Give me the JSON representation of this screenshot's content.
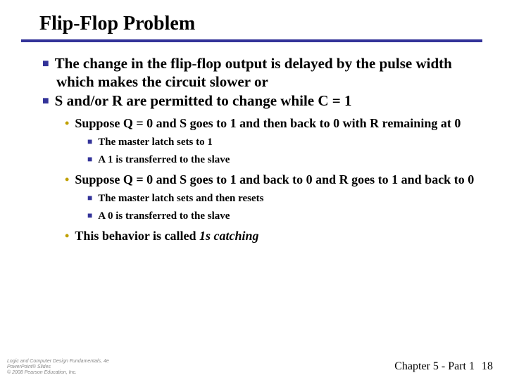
{
  "title": "Flip-Flop Problem",
  "bullets": {
    "l1a": "The change in the flip-flop output is delayed by the pulse width which makes the circuit slower or",
    "l1b": "S and/or R are permitted to change while C = 1",
    "l2a": "Suppose Q = 0 and S goes to 1 and then back to 0 with R remaining at 0",
    "l3a": "The master latch sets to 1",
    "l3b": "A 1 is transferred to the slave",
    "l2b": "Suppose Q = 0 and S goes to 1 and back to 0 and R goes to 1 and back to 0",
    "l3c": "The master latch sets and then resets",
    "l3d": "A 0 is transferred to the slave",
    "l2c_prefix": "This behavior is called ",
    "l2c_italic": "1s catching"
  },
  "footer": {
    "left_line1": "Logic and Computer Design Fundamentals, 4e",
    "left_line2": "PowerPoint® Slides",
    "left_line3": "© 2008 Pearson Education, Inc.",
    "right_label": "Chapter 5 - Part 1",
    "page_number": "18"
  },
  "colors": {
    "accent": "#333399",
    "sub_bullet": "#c0a000",
    "text": "#000000",
    "background": "#ffffff"
  }
}
